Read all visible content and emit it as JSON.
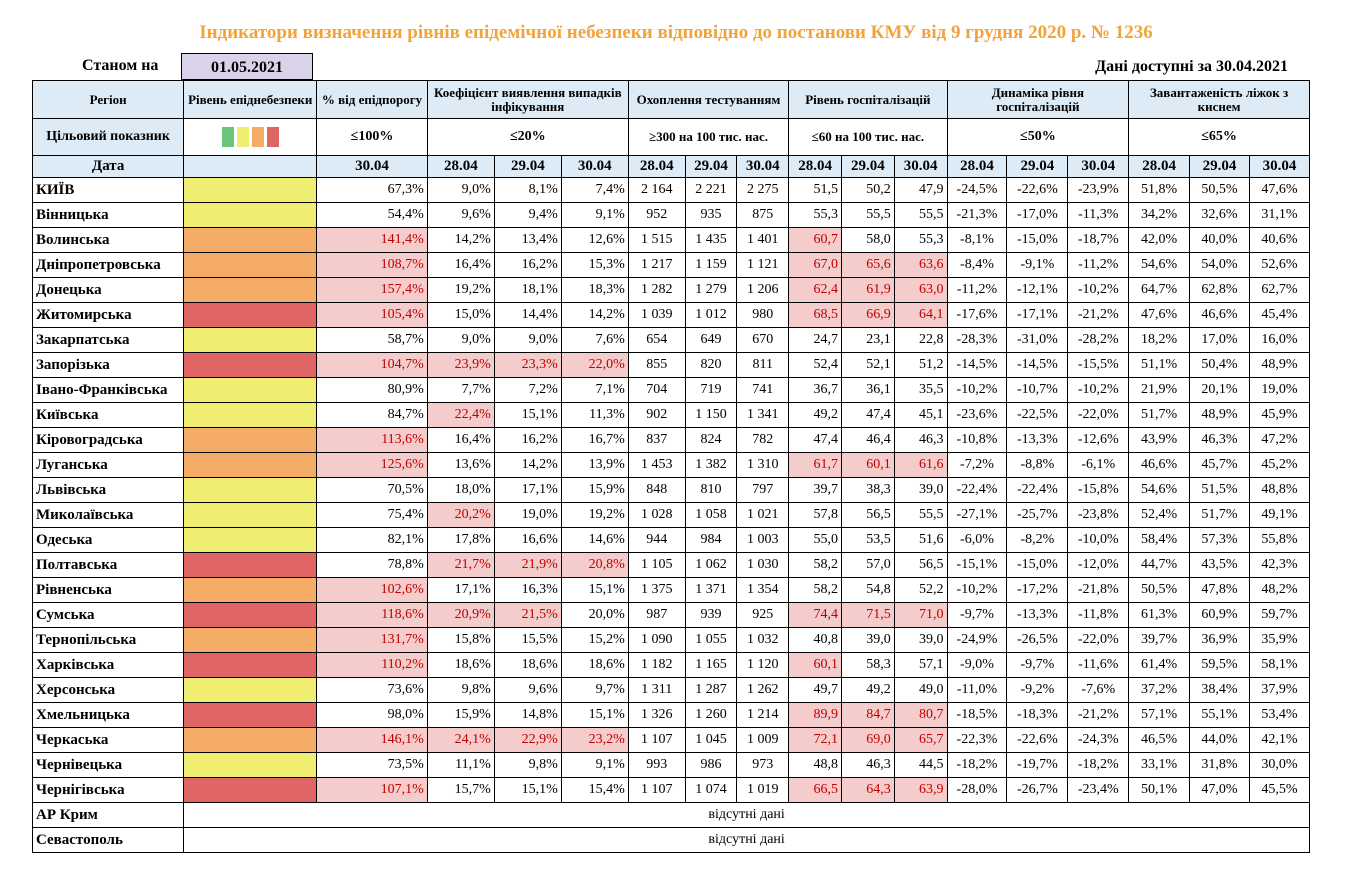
{
  "title": "Індикатори визначення рівнів епідемічної небезпеки відповідно до постанови КМУ від 9 грудня 2020 р. № 1236",
  "as_of_label": "Станом на",
  "as_of_date": "01.05.2021",
  "available_note": "Дані доступні за 30.04.2021",
  "headers": {
    "region": "Регіон",
    "level": "Рівень епіднебезпеки",
    "pct_threshold": "% від епідпорогу",
    "detection": "Коефіцієнт виявлення випадків інфікування",
    "testing": "Охоплення тестуванням",
    "hospital": "Рівень госпіталізацій",
    "dynamics": "Динаміка рівня госпіталізацій",
    "oxygen": "Завантаженість ліжок з киснем"
  },
  "targets": {
    "label": "Цільовий показник",
    "pct_threshold": "≤100%",
    "detection": "≤20%",
    "testing": "≥300 на 100 тис. нас.",
    "hospital": "≤60 на 100 тис. нас.",
    "dynamics": "≤50%",
    "oxygen": "≤65%"
  },
  "dates": {
    "label": "Дата",
    "single": "30.04",
    "triple": [
      "28.04",
      "29.04",
      "30.04"
    ]
  },
  "level_colors": {
    "y": "#f0ee72",
    "o": "#f4ac66",
    "r": "#e06666",
    "g": "#69c57a"
  },
  "rows": [
    {
      "region": "КИЇВ",
      "level": "y",
      "pct": "67,3%",
      "det": [
        "9,0%",
        "8,1%",
        "7,4%"
      ],
      "test": [
        "2 164",
        "2 221",
        "2 275"
      ],
      "hosp": [
        "51,5",
        "50,2",
        "47,9"
      ],
      "dyn": [
        "-24,5%",
        "-22,6%",
        "-23,9%"
      ],
      "oxy": [
        "51,8%",
        "50,5%",
        "47,6%"
      ]
    },
    {
      "region": "Вінницька",
      "level": "y",
      "pct": "54,4%",
      "det": [
        "9,6%",
        "9,4%",
        "9,1%"
      ],
      "test": [
        "952",
        "935",
        "875"
      ],
      "hosp": [
        "55,3",
        "55,5",
        "55,5"
      ],
      "dyn": [
        "-21,3%",
        "-17,0%",
        "-11,3%"
      ],
      "oxy": [
        "34,2%",
        "32,6%",
        "31,1%"
      ]
    },
    {
      "region": "Волинська",
      "level": "o",
      "pct": "141,4%",
      "det": [
        "14,2%",
        "13,4%",
        "12,6%"
      ],
      "test": [
        "1 515",
        "1 435",
        "1 401"
      ],
      "hosp": [
        "60,7",
        "58,0",
        "55,3"
      ],
      "dyn": [
        "-8,1%",
        "-15,0%",
        "-18,7%"
      ],
      "oxy": [
        "42,0%",
        "40,0%",
        "40,6%"
      ]
    },
    {
      "region": "Дніпропетровська",
      "level": "o",
      "pct": "108,7%",
      "det": [
        "16,4%",
        "16,2%",
        "15,3%"
      ],
      "test": [
        "1 217",
        "1 159",
        "1 121"
      ],
      "hosp": [
        "67,0",
        "65,6",
        "63,6"
      ],
      "dyn": [
        "-8,4%",
        "-9,1%",
        "-11,2%"
      ],
      "oxy": [
        "54,6%",
        "54,0%",
        "52,6%"
      ]
    },
    {
      "region": "Донецька",
      "level": "o",
      "pct": "157,4%",
      "det": [
        "19,2%",
        "18,1%",
        "18,3%"
      ],
      "test": [
        "1 282",
        "1 279",
        "1 206"
      ],
      "hosp": [
        "62,4",
        "61,9",
        "63,0"
      ],
      "dyn": [
        "-11,2%",
        "-12,1%",
        "-10,2%"
      ],
      "oxy": [
        "64,7%",
        "62,8%",
        "62,7%"
      ]
    },
    {
      "region": "Житомирська",
      "level": "r",
      "pct": "105,4%",
      "det": [
        "15,0%",
        "14,4%",
        "14,2%"
      ],
      "test": [
        "1 039",
        "1 012",
        "980"
      ],
      "hosp": [
        "68,5",
        "66,9",
        "64,1"
      ],
      "dyn": [
        "-17,6%",
        "-17,1%",
        "-21,2%"
      ],
      "oxy": [
        "47,6%",
        "46,6%",
        "45,4%"
      ]
    },
    {
      "region": "Закарпатська",
      "level": "y",
      "pct": "58,7%",
      "det": [
        "9,0%",
        "9,0%",
        "7,6%"
      ],
      "test": [
        "654",
        "649",
        "670"
      ],
      "hosp": [
        "24,7",
        "23,1",
        "22,8"
      ],
      "dyn": [
        "-28,3%",
        "-31,0%",
        "-28,2%"
      ],
      "oxy": [
        "18,2%",
        "17,0%",
        "16,0%"
      ]
    },
    {
      "region": "Запорізька",
      "level": "r",
      "pct": "104,7%",
      "det": [
        "23,9%",
        "23,3%",
        "22,0%"
      ],
      "test": [
        "855",
        "820",
        "811"
      ],
      "hosp": [
        "52,4",
        "52,1",
        "51,2"
      ],
      "dyn": [
        "-14,5%",
        "-14,5%",
        "-15,5%"
      ],
      "oxy": [
        "51,1%",
        "50,4%",
        "48,9%"
      ]
    },
    {
      "region": "Івано-Франківська",
      "level": "y",
      "pct": "80,9%",
      "det": [
        "7,7%",
        "7,2%",
        "7,1%"
      ],
      "test": [
        "704",
        "719",
        "741"
      ],
      "hosp": [
        "36,7",
        "36,1",
        "35,5"
      ],
      "dyn": [
        "-10,2%",
        "-10,7%",
        "-10,2%"
      ],
      "oxy": [
        "21,9%",
        "20,1%",
        "19,0%"
      ]
    },
    {
      "region": "Київська",
      "level": "y",
      "pct": "84,7%",
      "det": [
        "22,4%",
        "15,1%",
        "11,3%"
      ],
      "test": [
        "902",
        "1 150",
        "1 341"
      ],
      "hosp": [
        "49,2",
        "47,4",
        "45,1"
      ],
      "dyn": [
        "-23,6%",
        "-22,5%",
        "-22,0%"
      ],
      "oxy": [
        "51,7%",
        "48,9%",
        "45,9%"
      ]
    },
    {
      "region": "Кіровоградська",
      "level": "o",
      "pct": "113,6%",
      "det": [
        "16,4%",
        "16,2%",
        "16,7%"
      ],
      "test": [
        "837",
        "824",
        "782"
      ],
      "hosp": [
        "47,4",
        "46,4",
        "46,3"
      ],
      "dyn": [
        "-10,8%",
        "-13,3%",
        "-12,6%"
      ],
      "oxy": [
        "43,9%",
        "46,3%",
        "47,2%"
      ]
    },
    {
      "region": "Луганська",
      "level": "o",
      "pct": "125,6%",
      "det": [
        "13,6%",
        "14,2%",
        "13,9%"
      ],
      "test": [
        "1 453",
        "1 382",
        "1 310"
      ],
      "hosp": [
        "61,7",
        "60,1",
        "61,6"
      ],
      "dyn": [
        "-7,2%",
        "-8,8%",
        "-6,1%"
      ],
      "oxy": [
        "46,6%",
        "45,7%",
        "45,2%"
      ]
    },
    {
      "region": "Львівська",
      "level": "y",
      "pct": "70,5%",
      "det": [
        "18,0%",
        "17,1%",
        "15,9%"
      ],
      "test": [
        "848",
        "810",
        "797"
      ],
      "hosp": [
        "39,7",
        "38,3",
        "39,0"
      ],
      "dyn": [
        "-22,4%",
        "-22,4%",
        "-15,8%"
      ],
      "oxy": [
        "54,6%",
        "51,5%",
        "48,8%"
      ]
    },
    {
      "region": "Миколаївська",
      "level": "y",
      "pct": "75,4%",
      "det": [
        "20,2%",
        "19,0%",
        "19,2%"
      ],
      "test": [
        "1 028",
        "1 058",
        "1 021"
      ],
      "hosp": [
        "57,8",
        "56,5",
        "55,5"
      ],
      "dyn": [
        "-27,1%",
        "-25,7%",
        "-23,8%"
      ],
      "oxy": [
        "52,4%",
        "51,7%",
        "49,1%"
      ]
    },
    {
      "region": "Одеська",
      "level": "y",
      "pct": "82,1%",
      "det": [
        "17,8%",
        "16,6%",
        "14,6%"
      ],
      "test": [
        "944",
        "984",
        "1 003"
      ],
      "hosp": [
        "55,0",
        "53,5",
        "51,6"
      ],
      "dyn": [
        "-6,0%",
        "-8,2%",
        "-10,0%"
      ],
      "oxy": [
        "58,4%",
        "57,3%",
        "55,8%"
      ]
    },
    {
      "region": "Полтавська",
      "level": "r",
      "pct": "78,8%",
      "det": [
        "21,7%",
        "21,9%",
        "20,8%"
      ],
      "test": [
        "1 105",
        "1 062",
        "1 030"
      ],
      "hosp": [
        "58,2",
        "57,0",
        "56,5"
      ],
      "dyn": [
        "-15,1%",
        "-15,0%",
        "-12,0%"
      ],
      "oxy": [
        "44,7%",
        "43,5%",
        "42,3%"
      ]
    },
    {
      "region": "Рівненська",
      "level": "o",
      "pct": "102,6%",
      "det": [
        "17,1%",
        "16,3%",
        "15,1%"
      ],
      "test": [
        "1 375",
        "1 371",
        "1 354"
      ],
      "hosp": [
        "58,2",
        "54,8",
        "52,2"
      ],
      "dyn": [
        "-10,2%",
        "-17,2%",
        "-21,8%"
      ],
      "oxy": [
        "50,5%",
        "47,8%",
        "48,2%"
      ]
    },
    {
      "region": "Сумська",
      "level": "r",
      "pct": "118,6%",
      "det": [
        "20,9%",
        "21,5%",
        "20,0%"
      ],
      "test": [
        "987",
        "939",
        "925"
      ],
      "hosp": [
        "74,4",
        "71,5",
        "71,0"
      ],
      "dyn": [
        "-9,7%",
        "-13,3%",
        "-11,8%"
      ],
      "oxy": [
        "61,3%",
        "60,9%",
        "59,7%"
      ]
    },
    {
      "region": "Тернопільська",
      "level": "o",
      "pct": "131,7%",
      "det": [
        "15,8%",
        "15,5%",
        "15,2%"
      ],
      "test": [
        "1 090",
        "1 055",
        "1 032"
      ],
      "hosp": [
        "40,8",
        "39,0",
        "39,0"
      ],
      "dyn": [
        "-24,9%",
        "-26,5%",
        "-22,0%"
      ],
      "oxy": [
        "39,7%",
        "36,9%",
        "35,9%"
      ]
    },
    {
      "region": "Харківська",
      "level": "r",
      "pct": "110,2%",
      "det": [
        "18,6%",
        "18,6%",
        "18,6%"
      ],
      "test": [
        "1 182",
        "1 165",
        "1 120"
      ],
      "hosp": [
        "60,1",
        "58,3",
        "57,1"
      ],
      "dyn": [
        "-9,0%",
        "-9,7%",
        "-11,6%"
      ],
      "oxy": [
        "61,4%",
        "59,5%",
        "58,1%"
      ]
    },
    {
      "region": "Херсонська",
      "level": "y",
      "pct": "73,6%",
      "det": [
        "9,8%",
        "9,6%",
        "9,7%"
      ],
      "test": [
        "1 311",
        "1 287",
        "1 262"
      ],
      "hosp": [
        "49,7",
        "49,2",
        "49,0"
      ],
      "dyn": [
        "-11,0%",
        "-9,2%",
        "-7,6%"
      ],
      "oxy": [
        "37,2%",
        "38,4%",
        "37,9%"
      ]
    },
    {
      "region": "Хмельницька",
      "level": "r",
      "pct": "98,0%",
      "det": [
        "15,9%",
        "14,8%",
        "15,1%"
      ],
      "test": [
        "1 326",
        "1 260",
        "1 214"
      ],
      "hosp": [
        "89,9",
        "84,7",
        "80,7"
      ],
      "dyn": [
        "-18,5%",
        "-18,3%",
        "-21,2%"
      ],
      "oxy": [
        "57,1%",
        "55,1%",
        "53,4%"
      ]
    },
    {
      "region": "Черкаська",
      "level": "o",
      "pct": "146,1%",
      "det": [
        "24,1%",
        "22,9%",
        "23,2%"
      ],
      "test": [
        "1 107",
        "1 045",
        "1 009"
      ],
      "hosp": [
        "72,1",
        "69,0",
        "65,7"
      ],
      "dyn": [
        "-22,3%",
        "-22,6%",
        "-24,3%"
      ],
      "oxy": [
        "46,5%",
        "44,0%",
        "42,1%"
      ]
    },
    {
      "region": "Чернівецька",
      "level": "y",
      "pct": "73,5%",
      "det": [
        "11,1%",
        "9,8%",
        "9,1%"
      ],
      "test": [
        "993",
        "986",
        "973"
      ],
      "hosp": [
        "48,8",
        "46,3",
        "44,5"
      ],
      "dyn": [
        "-18,2%",
        "-19,7%",
        "-18,2%"
      ],
      "oxy": [
        "33,1%",
        "31,8%",
        "30,0%"
      ]
    },
    {
      "region": "Чернігівська",
      "level": "r",
      "pct": "107,1%",
      "det": [
        "15,7%",
        "15,1%",
        "15,4%"
      ],
      "test": [
        "1 107",
        "1 074",
        "1 019"
      ],
      "hosp": [
        "66,5",
        "64,3",
        "63,9"
      ],
      "dyn": [
        "-28,0%",
        "-26,7%",
        "-23,4%"
      ],
      "oxy": [
        "50,1%",
        "47,0%",
        "45,5%"
      ]
    }
  ],
  "nodata_rows": [
    {
      "region": "АР Крим",
      "text": "відсутні дані"
    },
    {
      "region": "Севастополь",
      "text": "відсутні дані"
    }
  ]
}
